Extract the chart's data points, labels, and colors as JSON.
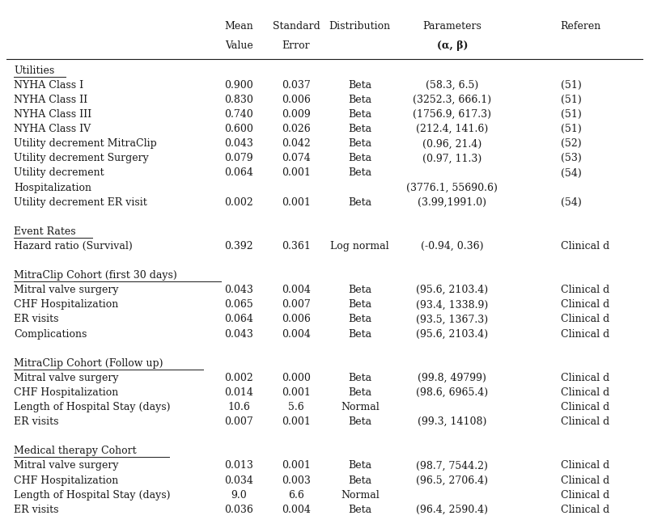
{
  "col_x": {
    "label": 0.012,
    "mean": 0.365,
    "se": 0.455,
    "dist": 0.555,
    "params": 0.7,
    "ref": 0.87
  },
  "header": {
    "mean": "Mean\nValue",
    "se": "Standard\nError",
    "dist": "Distribution",
    "params_line1": "Parameters",
    "params_line2": "(α, β)",
    "ref": "Referen"
  },
  "rows": [
    {
      "label": "Utilities",
      "underline": true,
      "mean": "",
      "se": "",
      "dist": "",
      "params": "",
      "ref": ""
    },
    {
      "label": "NYHA Class I",
      "underline": false,
      "mean": "0.900",
      "se": "0.037",
      "dist": "Beta",
      "params": "(58.3, 6.5)",
      "ref": "(51)"
    },
    {
      "label": "NYHA Class II",
      "underline": false,
      "mean": "0.830",
      "se": "0.006",
      "dist": "Beta",
      "params": "(3252.3, 666.1)",
      "ref": "(51)"
    },
    {
      "label": "NYHA Class III",
      "underline": false,
      "mean": "0.740",
      "se": "0.009",
      "dist": "Beta",
      "params": "(1756.9, 617.3)",
      "ref": "(51)"
    },
    {
      "label": "NYHA Class IV",
      "underline": false,
      "mean": "0.600",
      "se": "0.026",
      "dist": "Beta",
      "params": "(212.4, 141.6)",
      "ref": "(51)"
    },
    {
      "label": "Utility decrement MitraClip",
      "underline": false,
      "mean": "0.043",
      "se": "0.042",
      "dist": "Beta",
      "params": "(0.96, 21.4)",
      "ref": "(52)"
    },
    {
      "label": "Utility decrement Surgery",
      "underline": false,
      "mean": "0.079",
      "se": "0.074",
      "dist": "Beta",
      "params": "(0.97, 11.3)",
      "ref": "(53)"
    },
    {
      "label": "Utility decrement",
      "underline": false,
      "mean": "0.064",
      "se": "0.001",
      "dist": "Beta",
      "params": "",
      "ref": "(54)"
    },
    {
      "label": "Hospitalization",
      "underline": false,
      "mean": "",
      "se": "",
      "dist": "",
      "params": "(3776.1, 55690.6)",
      "ref": ""
    },
    {
      "label": "Utility decrement ER visit",
      "underline": false,
      "mean": "0.002",
      "se": "0.001",
      "dist": "Beta",
      "params": "(3.99,1991.0)",
      "ref": "(54)"
    },
    {
      "label": "",
      "underline": false,
      "mean": "",
      "se": "",
      "dist": "",
      "params": "",
      "ref": ""
    },
    {
      "label": "Event Rates",
      "underline": true,
      "mean": "",
      "se": "",
      "dist": "",
      "params": "",
      "ref": ""
    },
    {
      "label": "Hazard ratio (Survival)",
      "underline": false,
      "mean": "0.392",
      "se": "0.361",
      "dist": "Log normal",
      "params": "(-0.94, 0.36)",
      "ref": "Clinical d"
    },
    {
      "label": "",
      "underline": false,
      "mean": "",
      "se": "",
      "dist": "",
      "params": "",
      "ref": ""
    },
    {
      "label": "MitraClip Cohort (first 30 days)",
      "underline": true,
      "mean": "",
      "se": "",
      "dist": "",
      "params": "",
      "ref": ""
    },
    {
      "label": "Mitral valve surgery",
      "underline": false,
      "mean": "0.043",
      "se": "0.004",
      "dist": "Beta",
      "params": "(95.6, 2103.4)",
      "ref": "Clinical d"
    },
    {
      "label": "CHF Hospitalization",
      "underline": false,
      "mean": "0.065",
      "se": "0.007",
      "dist": "Beta",
      "params": "(93.4, 1338.9)",
      "ref": "Clinical d"
    },
    {
      "label": "ER visits",
      "underline": false,
      "mean": "0.064",
      "se": "0.006",
      "dist": "Beta",
      "params": "(93.5, 1367.3)",
      "ref": "Clinical d"
    },
    {
      "label": "Complications",
      "underline": false,
      "mean": "0.043",
      "se": "0.004",
      "dist": "Beta",
      "params": "(95.6, 2103.4)",
      "ref": "Clinical d"
    },
    {
      "label": "",
      "underline": false,
      "mean": "",
      "se": "",
      "dist": "",
      "params": "",
      "ref": ""
    },
    {
      "label": "MitraClip Cohort (Follow up)",
      "underline": true,
      "mean": "",
      "se": "",
      "dist": "",
      "params": "",
      "ref": ""
    },
    {
      "label": "Mitral valve surgery",
      "underline": false,
      "mean": "0.002",
      "se": "0.000",
      "dist": "Beta",
      "params": "(99.8, 49799)",
      "ref": "Clinical d"
    },
    {
      "label": "CHF Hospitalization",
      "underline": false,
      "mean": "0.014",
      "se": "0.001",
      "dist": "Beta",
      "params": "(98.6, 6965.4)",
      "ref": "Clinical d"
    },
    {
      "label": "Length of Hospital Stay (days)",
      "underline": false,
      "mean": "10.6",
      "se": "5.6",
      "dist": "Normal",
      "params": "",
      "ref": "Clinical d"
    },
    {
      "label": "ER visits",
      "underline": false,
      "mean": "0.007",
      "se": "0.001",
      "dist": "Beta",
      "params": "(99.3, 14108)",
      "ref": "Clinical d"
    },
    {
      "label": "",
      "underline": false,
      "mean": "",
      "se": "",
      "dist": "",
      "params": "",
      "ref": ""
    },
    {
      "label": "Medical therapy Cohort",
      "underline": true,
      "mean": "",
      "se": "",
      "dist": "",
      "params": "",
      "ref": ""
    },
    {
      "label": "Mitral valve surgery",
      "underline": false,
      "mean": "0.013",
      "se": "0.001",
      "dist": "Beta",
      "params": "(98.7, 7544.2)",
      "ref": "Clinical d"
    },
    {
      "label": "CHF Hospitalization",
      "underline": false,
      "mean": "0.034",
      "se": "0.003",
      "dist": "Beta",
      "params": "(96.5, 2706.4)",
      "ref": "Clinical d"
    },
    {
      "label": "Length of Hospital Stay (days)",
      "underline": false,
      "mean": "9.0",
      "se": "6.6",
      "dist": "Normal",
      "params": "",
      "ref": "Clinical d"
    },
    {
      "label": "ER visits",
      "underline": false,
      "mean": "0.036",
      "se": "0.004",
      "dist": "Beta",
      "params": "(96.4, 2590.4)",
      "ref": "Clinical d"
    }
  ],
  "font_size": 9.0,
  "bg_color": "#ffffff",
  "text_color": "#1a1a1a",
  "line_color": "#1a1a1a"
}
